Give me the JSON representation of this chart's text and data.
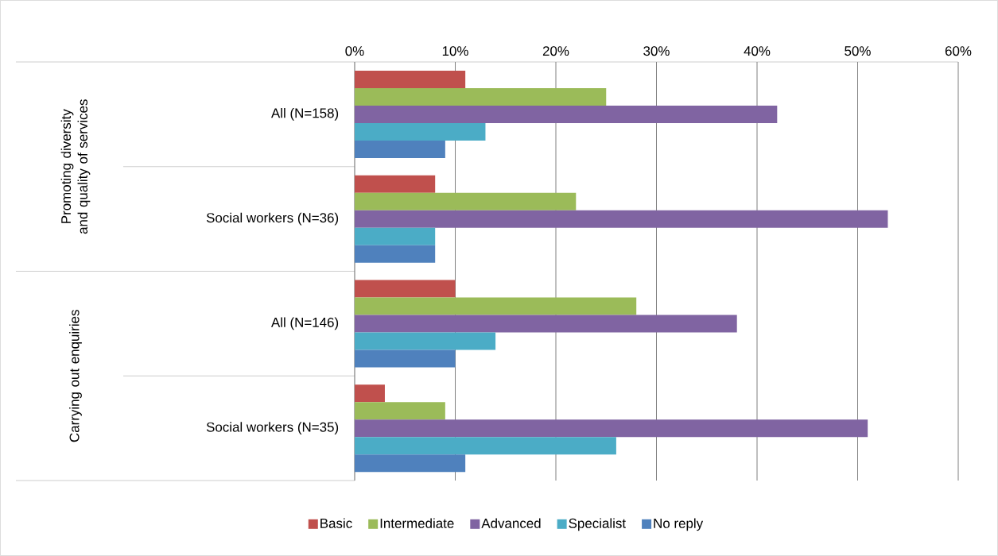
{
  "chart_data": {
    "type": "bar",
    "orientation": "horizontal",
    "categories": [
      "All (N=158)",
      "Social workers (N=36)",
      "All (N=146)",
      "Social workers (N=35)"
    ],
    "series": [
      {
        "name": "Basic",
        "color": "#c0504d",
        "values": [
          11,
          8,
          10,
          3
        ]
      },
      {
        "name": "Intermediate",
        "color": "#9bbb59",
        "values": [
          25,
          22,
          28,
          9
        ]
      },
      {
        "name": "Advanced",
        "color": "#8064a2",
        "values": [
          42,
          53,
          38,
          51
        ]
      },
      {
        "name": "Specialist",
        "color": "#4bacc6",
        "values": [
          13,
          8,
          14,
          26
        ]
      },
      {
        "name": "No reply",
        "color": "#4f81bd",
        "values": [
          9,
          8,
          10,
          11
        ]
      }
    ],
    "xlim": [
      0,
      60
    ],
    "xticks": [
      {
        "value": 0,
        "label": "0%"
      },
      {
        "value": 10,
        "label": "10%"
      },
      {
        "value": 20,
        "label": "20%"
      },
      {
        "value": 30,
        "label": "30%"
      },
      {
        "value": 40,
        "label": "40%"
      },
      {
        "value": 50,
        "label": "50%"
      },
      {
        "value": 60,
        "label": "60%"
      }
    ],
    "annotations": [
      "Promoting diversity and quality of services",
      "Carrying out enquiries"
    ],
    "grid": "x",
    "legend": "bottom"
  }
}
